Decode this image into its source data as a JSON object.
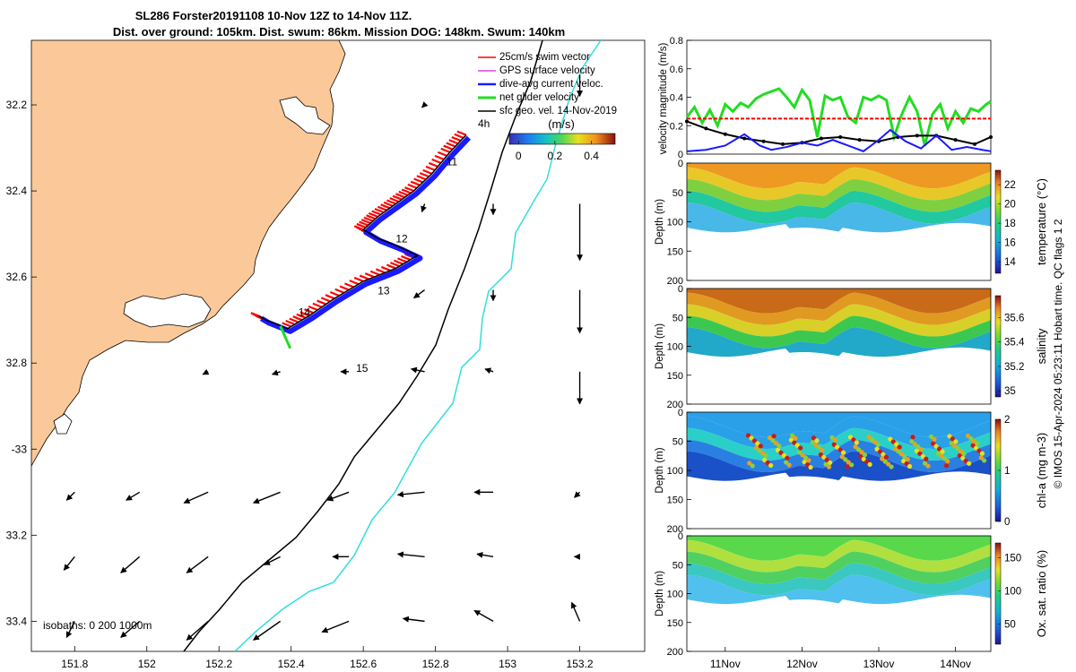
{
  "title": {
    "line1": "SL286 Forster20191108 10-Nov 12Z to 14-Nov 11Z.",
    "line2": "Dist. over ground: 105km. Dist. swum: 86km. Mission DOG: 148km. Swum: 140km"
  },
  "colors": {
    "land": "#fbc999",
    "swim": "#ff0000",
    "gps": "#e040e0",
    "dive_avg": "#1a1aff",
    "net": "#22dd22",
    "sfc_geo": "#000000",
    "isobath_200": "#000000",
    "isobath_1000": "#33dddd"
  },
  "chart_data": [
    {
      "type": "scatter",
      "name": "trajectory-map",
      "xlim": [
        151.68,
        153.38
      ],
      "ylim": [
        -33.47,
        -32.05
      ],
      "xticks": [
        151.8,
        152,
        152.2,
        152.4,
        152.6,
        152.8,
        153,
        153.2
      ],
      "xtick_labels": [
        "151.8",
        "152",
        "152.2",
        "152.4",
        "152.6",
        "152.8",
        "153",
        "153.2"
      ],
      "yticks": [
        -32.2,
        -32.4,
        -32.6,
        -32.8,
        -33.0,
        -33.2,
        -33.4
      ],
      "ytick_labels": [
        "32.2",
        "32.4",
        "32.6",
        "32.8",
        "-33",
        "33.2",
        "33.4"
      ],
      "legend": [
        {
          "label": "25cm/s swim vector",
          "color": "#ff0000"
        },
        {
          "label": "GPS surface velocity",
          "color": "#e040e0"
        },
        {
          "label": "dive-avg current veloc.",
          "color": "#1a1aff"
        },
        {
          "label": "net glider velocity",
          "color": "#22dd22"
        },
        {
          "label": "sfc geo. vel. 14-Nov-2019",
          "color": "#000000"
        }
      ],
      "legend_position": "top-right",
      "scale_label": "4h",
      "colorbar": {
        "label": "(m/s)",
        "ticks": [
          0,
          0.2,
          0.4
        ],
        "tick_labels": [
          "0",
          "0.2",
          "0.4"
        ],
        "range": [
          -0.05,
          0.53
        ]
      },
      "isobaths_label": "isobaths: 0   200 1000m",
      "track": [
        [
          152.885,
          -32.27
        ],
        [
          152.84,
          -32.31
        ],
        [
          152.79,
          -32.36
        ],
        [
          152.74,
          -32.4
        ],
        [
          152.69,
          -32.43
        ],
        [
          152.64,
          -32.46
        ],
        [
          152.6,
          -32.49
        ],
        [
          152.64,
          -32.51
        ],
        [
          152.7,
          -32.53
        ],
        [
          152.75,
          -32.55
        ],
        [
          152.69,
          -32.58
        ],
        [
          152.6,
          -32.61
        ],
        [
          152.52,
          -32.65
        ],
        [
          152.45,
          -32.69
        ],
        [
          152.39,
          -32.72
        ],
        [
          152.33,
          -32.7
        ],
        [
          152.31,
          -32.69
        ]
      ],
      "day_labels": [
        {
          "label": "11",
          "lon": 152.83,
          "lat": -32.34
        },
        {
          "label": "12",
          "lon": 152.69,
          "lat": -32.52
        },
        {
          "label": "13",
          "lon": 152.64,
          "lat": -32.64
        },
        {
          "label": "14",
          "lon": 152.42,
          "lat": -32.69
        },
        {
          "label": "15",
          "lon": 152.58,
          "lat": -32.82
        }
      ],
      "geo_vectors_uv": [
        [
          151.8,
          -33.1,
          -0.03,
          -0.03
        ],
        [
          151.98,
          -33.1,
          -0.05,
          -0.03
        ],
        [
          152.17,
          -33.1,
          -0.09,
          -0.04
        ],
        [
          152.37,
          -33.1,
          -0.1,
          -0.04
        ],
        [
          152.56,
          -33.1,
          -0.08,
          -0.03
        ],
        [
          152.77,
          -33.1,
          -0.1,
          -0.01
        ],
        [
          152.96,
          -33.1,
          -0.07,
          0.0
        ],
        [
          153.2,
          -33.1,
          -0.02,
          -0.02
        ],
        [
          151.8,
          -33.25,
          -0.04,
          -0.05
        ],
        [
          151.98,
          -33.25,
          -0.07,
          -0.06
        ],
        [
          152.17,
          -33.25,
          -0.08,
          -0.06
        ],
        [
          152.37,
          -33.25,
          -0.06,
          -0.03
        ],
        [
          152.56,
          -33.25,
          -0.06,
          0.0
        ],
        [
          152.77,
          -33.25,
          -0.1,
          0.01
        ],
        [
          152.96,
          -33.25,
          -0.06,
          0.01
        ],
        [
          153.2,
          -33.25,
          -0.02,
          0.0
        ],
        [
          151.8,
          -33.4,
          -0.03,
          -0.06
        ],
        [
          151.98,
          -33.4,
          -0.07,
          -0.06
        ],
        [
          152.17,
          -33.4,
          -0.08,
          -0.07
        ],
        [
          152.37,
          -33.4,
          -0.1,
          -0.07
        ],
        [
          152.56,
          -33.4,
          -0.1,
          -0.04
        ],
        [
          152.77,
          -33.4,
          -0.08,
          0.01
        ],
        [
          152.96,
          -33.4,
          -0.07,
          0.04
        ],
        [
          153.2,
          -33.4,
          -0.03,
          0.07
        ],
        [
          152.17,
          -32.82,
          -0.02,
          -0.01
        ],
        [
          152.37,
          -32.82,
          -0.03,
          -0.01
        ],
        [
          152.56,
          -32.82,
          -0.03,
          0.0
        ],
        [
          152.77,
          -32.82,
          -0.05,
          0.01
        ],
        [
          152.96,
          -32.82,
          -0.03,
          0.01
        ],
        [
          153.2,
          -32.82,
          0.0,
          -0.12
        ],
        [
          152.77,
          -32.63,
          -0.04,
          -0.03
        ],
        [
          152.96,
          -32.63,
          0.0,
          -0.04
        ],
        [
          153.2,
          -32.63,
          0.0,
          -0.16
        ],
        [
          152.77,
          -32.43,
          -0.01,
          -0.03
        ],
        [
          152.96,
          -32.43,
          0.0,
          -0.04
        ],
        [
          153.2,
          -32.43,
          0.0,
          -0.21
        ],
        [
          152.77,
          -32.2,
          -0.01,
          -0.01
        ],
        [
          153.2,
          -32.13,
          0.0,
          -0.08
        ]
      ]
    },
    {
      "type": "line",
      "name": "velocity-magnitude",
      "ylabel": "velocity magnitude (m/s)",
      "ylim": [
        0,
        0.8
      ],
      "yticks": [
        0,
        0.2,
        0.4,
        0.6,
        0.8
      ],
      "ytick_labels": [
        "0",
        "0.2",
        "0.4",
        "0.6",
        "0.8"
      ],
      "xlim": [
        10.5,
        14.46
      ],
      "series": [
        {
          "name": "net glider velocity",
          "color": "#22dd22",
          "x": [
            10.5,
            10.6,
            10.7,
            10.8,
            10.9,
            11.0,
            11.1,
            11.2,
            11.3,
            11.4,
            11.5,
            11.6,
            11.7,
            11.8,
            11.9,
            12.0,
            12.1,
            12.2,
            12.3,
            12.4,
            12.5,
            12.6,
            12.7,
            12.8,
            12.9,
            13.0,
            13.1,
            13.2,
            13.3,
            13.4,
            13.5,
            13.6,
            13.7,
            13.8,
            13.9,
            14.0,
            14.1,
            14.2,
            14.3,
            14.4,
            14.46
          ],
          "values": [
            0.26,
            0.33,
            0.22,
            0.31,
            0.2,
            0.35,
            0.3,
            0.36,
            0.33,
            0.39,
            0.42,
            0.44,
            0.46,
            0.4,
            0.33,
            0.45,
            0.38,
            0.12,
            0.41,
            0.38,
            0.4,
            0.26,
            0.22,
            0.4,
            0.38,
            0.41,
            0.38,
            0.12,
            0.28,
            0.4,
            0.3,
            0.06,
            0.28,
            0.35,
            0.18,
            0.3,
            0.22,
            0.32,
            0.3,
            0.35,
            0.37
          ]
        },
        {
          "name": "swim vector",
          "color": "#ff0000",
          "x": [
            10.5,
            14.46
          ],
          "values": [
            0.25,
            0.25
          ]
        },
        {
          "name": "depth-avg current",
          "color": "#000000",
          "x": [
            10.5,
            10.75,
            11.0,
            11.25,
            11.5,
            11.75,
            12.0,
            12.25,
            12.5,
            12.75,
            13.0,
            13.25,
            13.5,
            13.75,
            14.0,
            14.25,
            14.46
          ],
          "values": [
            0.23,
            0.18,
            0.14,
            0.11,
            0.09,
            0.07,
            0.08,
            0.11,
            0.12,
            0.1,
            0.09,
            0.12,
            0.13,
            0.13,
            0.1,
            0.07,
            0.12
          ]
        },
        {
          "name": "dive-avg current veloc.",
          "color": "#1a1aff",
          "x": [
            10.5,
            10.75,
            11.0,
            11.25,
            11.45,
            11.6,
            11.8,
            12.0,
            12.2,
            12.4,
            12.6,
            12.8,
            13.0,
            13.15,
            13.35,
            13.55,
            13.75,
            13.95,
            14.15,
            14.35,
            14.46
          ],
          "values": [
            0.02,
            0.03,
            0.06,
            0.14,
            0.06,
            0.03,
            0.05,
            0.08,
            0.06,
            0.1,
            0.06,
            0.02,
            0.1,
            0.17,
            0.09,
            0.04,
            0.13,
            0.03,
            0.05,
            0.03,
            0.02
          ]
        }
      ]
    },
    {
      "type": "heatmap",
      "name": "temperature-section",
      "ylabel": "Depth (m)",
      "ylim": [
        200,
        0
      ],
      "yticks": [
        0,
        50,
        100,
        150,
        200
      ],
      "ytick_labels": [
        "0",
        "50",
        "100",
        "150",
        "200"
      ],
      "colorbar_label": "temperature (°C)",
      "colorbar_ticks": [
        14,
        16,
        18,
        20,
        22
      ],
      "colorbar_tick_labels": [
        "14",
        "16",
        "18",
        "20",
        "22"
      ],
      "range": [
        12.8,
        23.5
      ]
    },
    {
      "type": "heatmap",
      "name": "salinity-section",
      "ylabel": "Depth (m)",
      "ylim": [
        200,
        0
      ],
      "yticks": [
        0,
        50,
        100,
        150,
        200
      ],
      "ytick_labels": [
        "0",
        "50",
        "100",
        "150",
        "200"
      ],
      "colorbar_label": "salinity",
      "colorbar_ticks": [
        35,
        35.2,
        35.4,
        35.6
      ],
      "colorbar_tick_labels": [
        "35",
        "35.2",
        "35.4",
        "35.6"
      ],
      "range": [
        34.95,
        35.78
      ]
    },
    {
      "type": "heatmap",
      "name": "chlorophyll-section",
      "ylabel": "Depth (m)",
      "ylim": [
        200,
        0
      ],
      "yticks": [
        0,
        50,
        100,
        150,
        200
      ],
      "ytick_labels": [
        "0",
        "50",
        "100",
        "150",
        "200"
      ],
      "colorbar_label": "chl-a (mg m-3)",
      "colorbar_ticks": [
        0,
        1,
        2
      ],
      "colorbar_tick_labels": [
        "0",
        "1",
        "2"
      ],
      "range": [
        0,
        2
      ]
    },
    {
      "type": "heatmap",
      "name": "oxygen-section",
      "ylabel": "Depth (m)",
      "ylim": [
        200,
        0
      ],
      "yticks": [
        0,
        50,
        100,
        150,
        200
      ],
      "ytick_labels": [
        "0",
        "50",
        "100",
        "150",
        "200"
      ],
      "colorbar_label": "Ox. sat. ratio (%)",
      "colorbar_ticks": [
        50,
        100,
        150
      ],
      "colorbar_tick_labels": [
        "50",
        "100",
        "150"
      ],
      "range": [
        20,
        172
      ],
      "xticks": [
        11,
        12,
        13,
        14
      ],
      "xtick_labels": [
        "11Nov",
        "12Nov",
        "13Nov",
        "14Nov"
      ]
    }
  ],
  "copyright": "© IMOS 15-Apr-2024 05:23:11 Hobart time. QC flags 1  2"
}
